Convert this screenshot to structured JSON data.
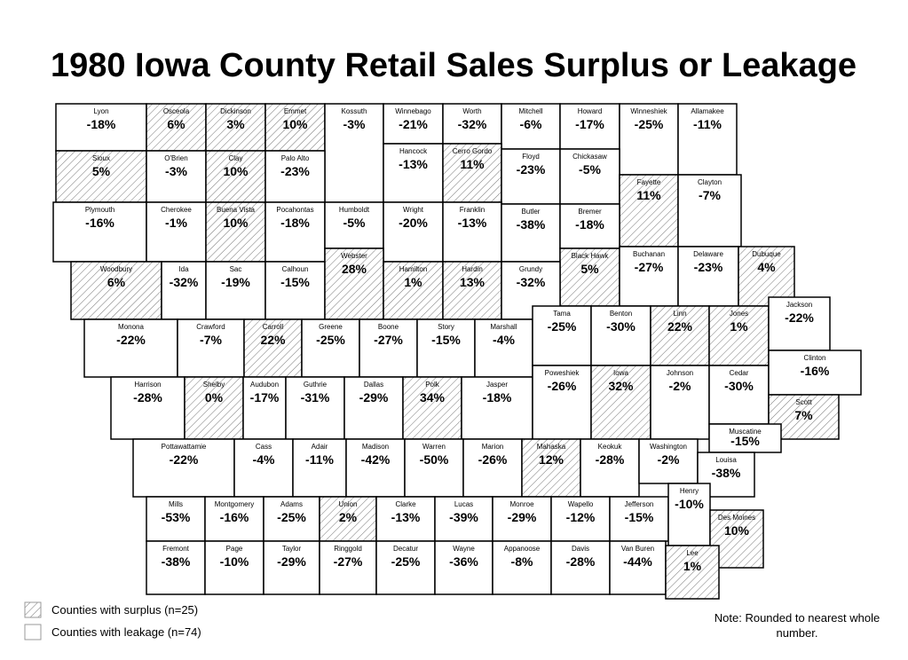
{
  "title": "1980 Iowa County Retail Sales Surplus or Leakage",
  "counties": [
    {
      "name": "Lyon",
      "label": "-18%",
      "surplus": false
    },
    {
      "name": "Osceola",
      "label": "6%",
      "surplus": true
    },
    {
      "name": "Dickinson",
      "label": "3%",
      "surplus": true
    },
    {
      "name": "Emmet",
      "label": "10%",
      "surplus": true
    },
    {
      "name": "Kossuth",
      "label": "-3%",
      "surplus": false
    },
    {
      "name": "Winnebago",
      "label": "-21%",
      "surplus": false
    },
    {
      "name": "Worth",
      "label": "-32%",
      "surplus": false
    },
    {
      "name": "Mitchell",
      "label": "-6%",
      "surplus": false
    },
    {
      "name": "Howard",
      "label": "-17%",
      "surplus": false
    },
    {
      "name": "Winneshiek",
      "label": "-25%",
      "surplus": false
    },
    {
      "name": "Allamakee",
      "label": "-11%",
      "surplus": false
    },
    {
      "name": "Sioux",
      "label": "5%",
      "surplus": true
    },
    {
      "name": "O'Brien",
      "label": "-3%",
      "surplus": false
    },
    {
      "name": "Clay",
      "label": "10%",
      "surplus": true
    },
    {
      "name": "Palo Alto",
      "label": "-23%",
      "surplus": false
    },
    {
      "name": "Hancock",
      "label": "-13%",
      "surplus": false
    },
    {
      "name": "Cerro Gordo",
      "label": "11%",
      "surplus": true
    },
    {
      "name": "Floyd",
      "label": "-23%",
      "surplus": false
    },
    {
      "name": "Chickasaw",
      "label": "-5%",
      "surplus": false
    },
    {
      "name": "Fayette",
      "label": "11%",
      "surplus": true
    },
    {
      "name": "Clayton",
      "label": "-7%",
      "surplus": false
    },
    {
      "name": "Plymouth",
      "label": "-16%",
      "surplus": false
    },
    {
      "name": "Cherokee",
      "label": "-1%",
      "surplus": false
    },
    {
      "name": "Buena Vista",
      "label": "10%",
      "surplus": true
    },
    {
      "name": "Pocahontas",
      "label": "-18%",
      "surplus": false
    },
    {
      "name": "Humboldt",
      "label": "-5%",
      "surplus": false
    },
    {
      "name": "Wright",
      "label": "-20%",
      "surplus": false
    },
    {
      "name": "Franklin",
      "label": "-13%",
      "surplus": false
    },
    {
      "name": "Butler",
      "label": "-38%",
      "surplus": false
    },
    {
      "name": "Bremer",
      "label": "-18%",
      "surplus": false
    },
    {
      "name": "Black Hawk",
      "label": "5%",
      "surplus": true
    },
    {
      "name": "Buchanan",
      "label": "-27%",
      "surplus": false
    },
    {
      "name": "Delaware",
      "label": "-23%",
      "surplus": false
    },
    {
      "name": "Dubuque",
      "label": "4%",
      "surplus": true
    },
    {
      "name": "Woodbury",
      "label": "6%",
      "surplus": true
    },
    {
      "name": "Ida",
      "label": "-32%",
      "surplus": false
    },
    {
      "name": "Sac",
      "label": "-19%",
      "surplus": false
    },
    {
      "name": "Calhoun",
      "label": "-15%",
      "surplus": false
    },
    {
      "name": "Webster",
      "label": "28%",
      "surplus": true
    },
    {
      "name": "Hamilton",
      "label": "1%",
      "surplus": true
    },
    {
      "name": "Hardin",
      "label": "13%",
      "surplus": true
    },
    {
      "name": "Grundy",
      "label": "-32%",
      "surplus": false
    },
    {
      "name": "Monona",
      "label": "-22%",
      "surplus": false
    },
    {
      "name": "Crawford",
      "label": "-7%",
      "surplus": false
    },
    {
      "name": "Carroll",
      "label": "22%",
      "surplus": true
    },
    {
      "name": "Greene",
      "label": "-25%",
      "surplus": false
    },
    {
      "name": "Boone",
      "label": "-27%",
      "surplus": false
    },
    {
      "name": "Story",
      "label": "-15%",
      "surplus": false
    },
    {
      "name": "Marshall",
      "label": "-4%",
      "surplus": false
    },
    {
      "name": "Tama",
      "label": "-25%",
      "surplus": false
    },
    {
      "name": "Benton",
      "label": "-30%",
      "surplus": false
    },
    {
      "name": "Linn",
      "label": "22%",
      "surplus": true
    },
    {
      "name": "Jones",
      "label": "1%",
      "surplus": true
    },
    {
      "name": "Jackson",
      "label": "-22%",
      "surplus": false
    },
    {
      "name": "Harrison",
      "label": "-28%",
      "surplus": false
    },
    {
      "name": "Shelby",
      "label": "0%",
      "surplus": true
    },
    {
      "name": "Audubon",
      "label": "-17%",
      "surplus": false
    },
    {
      "name": "Guthrie",
      "label": "-31%",
      "surplus": false
    },
    {
      "name": "Dallas",
      "label": "-29%",
      "surplus": false
    },
    {
      "name": "Polk",
      "label": "34%",
      "surplus": true
    },
    {
      "name": "Jasper",
      "label": "-18%",
      "surplus": false
    },
    {
      "name": "Poweshiek",
      "label": "-26%",
      "surplus": false
    },
    {
      "name": "Iowa",
      "label": "32%",
      "surplus": true
    },
    {
      "name": "Johnson",
      "label": "-2%",
      "surplus": false
    },
    {
      "name": "Cedar",
      "label": "-30%",
      "surplus": false
    },
    {
      "name": "Clinton",
      "label": "-16%",
      "surplus": false
    },
    {
      "name": "Scott",
      "label": "7%",
      "surplus": true
    },
    {
      "name": "Muscatine",
      "label": "-15%",
      "surplus": false
    },
    {
      "name": "Pottawattamie",
      "label": "-22%",
      "surplus": false
    },
    {
      "name": "Cass",
      "label": "-4%",
      "surplus": false
    },
    {
      "name": "Adair",
      "label": "-11%",
      "surplus": false
    },
    {
      "name": "Madison",
      "label": "-42%",
      "surplus": false
    },
    {
      "name": "Warren",
      "label": "-50%",
      "surplus": false
    },
    {
      "name": "Marion",
      "label": "-26%",
      "surplus": false
    },
    {
      "name": "Mahaska",
      "label": "12%",
      "surplus": true
    },
    {
      "name": "Keokuk",
      "label": "-28%",
      "surplus": false
    },
    {
      "name": "Washington",
      "label": "-2%",
      "surplus": false
    },
    {
      "name": "Louisa",
      "label": "-38%",
      "surplus": false
    },
    {
      "name": "Mills",
      "label": "-53%",
      "surplus": false
    },
    {
      "name": "Montgomery",
      "label": "-16%",
      "surplus": false
    },
    {
      "name": "Adams",
      "label": "-25%",
      "surplus": false
    },
    {
      "name": "Union",
      "label": "2%",
      "surplus": true
    },
    {
      "name": "Clarke",
      "label": "-13%",
      "surplus": false
    },
    {
      "name": "Lucas",
      "label": "-39%",
      "surplus": false
    },
    {
      "name": "Monroe",
      "label": "-29%",
      "surplus": false
    },
    {
      "name": "Wapello",
      "label": "-12%",
      "surplus": false
    },
    {
      "name": "Jefferson",
      "label": "-15%",
      "surplus": false
    },
    {
      "name": "Henry",
      "label": "-10%",
      "surplus": false
    },
    {
      "name": "Des Moines",
      "label": "10%",
      "surplus": true
    },
    {
      "name": "Fremont",
      "label": "-38%",
      "surplus": false
    },
    {
      "name": "Page",
      "label": "-10%",
      "surplus": false
    },
    {
      "name": "Taylor",
      "label": "-29%",
      "surplus": false
    },
    {
      "name": "Ringgold",
      "label": "-27%",
      "surplus": false
    },
    {
      "name": "Decatur",
      "label": "-25%",
      "surplus": false
    },
    {
      "name": "Wayne",
      "label": "-36%",
      "surplus": false
    },
    {
      "name": "Appanoose",
      "label": "-8%",
      "surplus": false
    },
    {
      "name": "Davis",
      "label": "-28%",
      "surplus": false
    },
    {
      "name": "Van Buren",
      "label": "-44%",
      "surplus": false
    },
    {
      "name": "Lee",
      "label": "1%",
      "surplus": true
    }
  ],
  "legend": [
    {
      "label": "Counties with surplus (n=25)"
    },
    {
      "label": "Counties with leakage (n=74)"
    }
  ],
  "note": "Note: Rounded to nearest whole number."
}
